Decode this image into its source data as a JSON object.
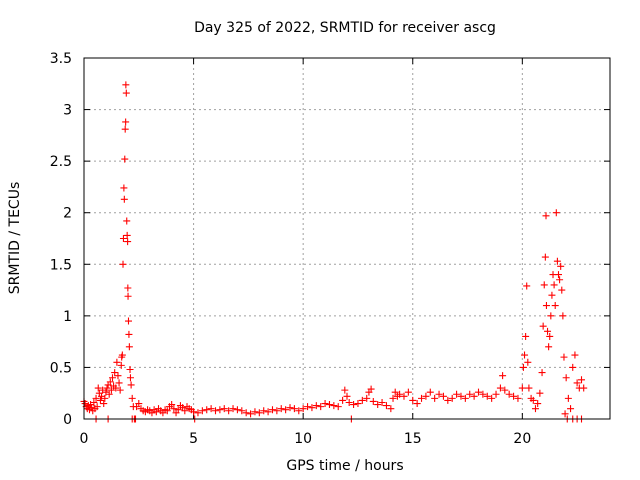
{
  "chart_data": {
    "type": "scatter",
    "title": "Day 325 of 2022, SRMTID for receiver ascg",
    "xlabel": "GPS time / hours",
    "ylabel": "SRMTID / TECUs",
    "xlim": [
      0,
      24
    ],
    "ylim": [
      0,
      3.5
    ],
    "x_ticks": [
      0,
      5,
      10,
      15,
      20
    ],
    "y_ticks": [
      0,
      0.5,
      1,
      1.5,
      2,
      2.5,
      3,
      3.5
    ],
    "x_tick_labels": [
      "0",
      "5",
      "10",
      "15",
      "20"
    ],
    "y_tick_labels": [
      "0",
      "0.5",
      "1",
      "1.5",
      "2",
      "2.5",
      "3",
      "3.5"
    ],
    "grid": true,
    "marker": "plus",
    "marker_color": "#ff0000",
    "series": [
      {
        "name": "SRMTID",
        "points": [
          [
            0.0,
            0.17
          ],
          [
            0.05,
            0.15
          ],
          [
            0.1,
            0.12
          ],
          [
            0.15,
            0.1
          ],
          [
            0.2,
            0.13
          ],
          [
            0.25,
            0.09
          ],
          [
            0.3,
            0.14
          ],
          [
            0.35,
            0.11
          ],
          [
            0.4,
            0.08
          ],
          [
            0.45,
            0.16
          ],
          [
            0.5,
            0.1
          ],
          [
            0.55,
            0.2
          ],
          [
            0.6,
            0.12
          ],
          [
            0.65,
            0.3
          ],
          [
            0.7,
            0.25
          ],
          [
            0.75,
            0.18
          ],
          [
            0.8,
            0.22
          ],
          [
            0.85,
            0.28
          ],
          [
            0.9,
            0.15
          ],
          [
            0.95,
            0.2
          ],
          [
            1.0,
            0.26
          ],
          [
            1.05,
            0.3
          ],
          [
            1.1,
            0.33
          ],
          [
            1.15,
            0.24
          ],
          [
            1.2,
            0.36
          ],
          [
            1.25,
            0.28
          ],
          [
            1.3,
            0.4
          ],
          [
            1.35,
            0.32
          ],
          [
            1.4,
            0.45
          ],
          [
            1.45,
            0.3
          ],
          [
            1.5,
            0.55
          ],
          [
            1.55,
            0.42
          ],
          [
            1.6,
            0.35
          ],
          [
            1.65,
            0.28
          ],
          [
            1.7,
            0.52
          ],
          [
            1.72,
            0.6
          ],
          [
            1.75,
            0.62
          ],
          [
            1.78,
            1.5
          ],
          [
            1.8,
            1.75
          ],
          [
            1.82,
            2.24
          ],
          [
            1.84,
            2.13
          ],
          [
            1.86,
            2.52
          ],
          [
            1.88,
            2.81
          ],
          [
            1.9,
            2.88
          ],
          [
            1.91,
            3.24
          ],
          [
            1.93,
            3.16
          ],
          [
            1.95,
            1.92
          ],
          [
            1.97,
            1.78
          ],
          [
            1.99,
            1.72
          ],
          [
            2.0,
            1.27
          ],
          [
            2.01,
            1.19
          ],
          [
            2.03,
            0.95
          ],
          [
            2.05,
            0.82
          ],
          [
            2.07,
            0.7
          ],
          [
            2.1,
            0.48
          ],
          [
            2.12,
            0.4
          ],
          [
            2.15,
            0.33
          ],
          [
            2.2,
            0.2
          ],
          [
            2.25,
            0.12
          ],
          [
            2.3,
            0.0
          ],
          [
            2.35,
            0.0
          ],
          [
            2.4,
            0.12
          ],
          [
            2.5,
            0.15
          ],
          [
            2.6,
            0.1
          ],
          [
            2.7,
            0.08
          ],
          [
            2.8,
            0.07
          ],
          [
            2.9,
            0.09
          ],
          [
            3.0,
            0.08
          ],
          [
            3.1,
            0.06
          ],
          [
            3.2,
            0.09
          ],
          [
            3.3,
            0.07
          ],
          [
            3.4,
            0.1
          ],
          [
            3.5,
            0.08
          ],
          [
            3.6,
            0.06
          ],
          [
            3.7,
            0.09
          ],
          [
            3.8,
            0.08
          ],
          [
            3.9,
            0.12
          ],
          [
            4.0,
            0.14
          ],
          [
            4.1,
            0.1
          ],
          [
            4.2,
            0.06
          ],
          [
            4.3,
            0.09
          ],
          [
            4.4,
            0.13
          ],
          [
            4.5,
            0.11
          ],
          [
            4.6,
            0.08
          ],
          [
            4.7,
            0.12
          ],
          [
            4.8,
            0.1
          ],
          [
            4.9,
            0.09
          ],
          [
            5.0,
            0.07
          ],
          [
            5.05,
            0.0
          ],
          [
            5.2,
            0.06
          ],
          [
            5.4,
            0.08
          ],
          [
            5.6,
            0.09
          ],
          [
            5.8,
            0.1
          ],
          [
            6.0,
            0.08
          ],
          [
            6.2,
            0.09
          ],
          [
            6.4,
            0.1
          ],
          [
            6.6,
            0.08
          ],
          [
            6.8,
            0.1
          ],
          [
            7.0,
            0.09
          ],
          [
            7.2,
            0.08
          ],
          [
            7.4,
            0.06
          ],
          [
            7.6,
            0.05
          ],
          [
            7.8,
            0.07
          ],
          [
            8.0,
            0.06
          ],
          [
            8.2,
            0.08
          ],
          [
            8.4,
            0.07
          ],
          [
            8.6,
            0.09
          ],
          [
            8.8,
            0.08
          ],
          [
            9.0,
            0.1
          ],
          [
            9.2,
            0.09
          ],
          [
            9.4,
            0.11
          ],
          [
            9.6,
            0.1
          ],
          [
            9.8,
            0.08
          ],
          [
            10.0,
            0.1
          ],
          [
            10.2,
            0.12
          ],
          [
            10.4,
            0.11
          ],
          [
            10.6,
            0.13
          ],
          [
            10.8,
            0.12
          ],
          [
            11.0,
            0.15
          ],
          [
            11.2,
            0.14
          ],
          [
            11.4,
            0.13
          ],
          [
            11.6,
            0.12
          ],
          [
            11.8,
            0.18
          ],
          [
            11.9,
            0.28
          ],
          [
            12.0,
            0.22
          ],
          [
            12.1,
            0.16
          ],
          [
            12.2,
            0.0
          ],
          [
            12.3,
            0.14
          ],
          [
            12.5,
            0.15
          ],
          [
            12.7,
            0.18
          ],
          [
            12.9,
            0.2
          ],
          [
            13.0,
            0.26
          ],
          [
            13.1,
            0.29
          ],
          [
            13.2,
            0.17
          ],
          [
            13.4,
            0.14
          ],
          [
            13.6,
            0.16
          ],
          [
            13.8,
            0.13
          ],
          [
            14.0,
            0.1
          ],
          [
            14.1,
            0.2
          ],
          [
            14.2,
            0.26
          ],
          [
            14.3,
            0.22
          ],
          [
            14.4,
            0.24
          ],
          [
            14.6,
            0.22
          ],
          [
            14.8,
            0.26
          ],
          [
            15.0,
            0.18
          ],
          [
            15.2,
            0.15
          ],
          [
            15.4,
            0.2
          ],
          [
            15.6,
            0.22
          ],
          [
            15.8,
            0.26
          ],
          [
            16.0,
            0.2
          ],
          [
            16.2,
            0.24
          ],
          [
            16.4,
            0.22
          ],
          [
            16.6,
            0.18
          ],
          [
            16.8,
            0.2
          ],
          [
            17.0,
            0.24
          ],
          [
            17.2,
            0.22
          ],
          [
            17.4,
            0.2
          ],
          [
            17.6,
            0.24
          ],
          [
            17.8,
            0.22
          ],
          [
            18.0,
            0.26
          ],
          [
            18.2,
            0.24
          ],
          [
            18.4,
            0.22
          ],
          [
            18.6,
            0.2
          ],
          [
            18.8,
            0.24
          ],
          [
            19.0,
            0.3
          ],
          [
            19.1,
            0.42
          ],
          [
            19.2,
            0.28
          ],
          [
            19.4,
            0.24
          ],
          [
            19.6,
            0.22
          ],
          [
            19.8,
            0.2
          ],
          [
            20.0,
            0.3
          ],
          [
            20.05,
            0.5
          ],
          [
            20.1,
            0.62
          ],
          [
            20.15,
            0.8
          ],
          [
            20.2,
            1.29
          ],
          [
            20.25,
            0.55
          ],
          [
            20.3,
            0.3
          ],
          [
            20.4,
            0.2
          ],
          [
            20.5,
            0.18
          ],
          [
            20.6,
            0.1
          ],
          [
            20.7,
            0.15
          ],
          [
            20.8,
            0.25
          ],
          [
            20.9,
            0.45
          ],
          [
            20.95,
            0.9
          ],
          [
            21.0,
            1.3
          ],
          [
            21.05,
            1.57
          ],
          [
            21.08,
            1.97
          ],
          [
            21.1,
            1.1
          ],
          [
            21.15,
            0.85
          ],
          [
            21.2,
            0.7
          ],
          [
            21.25,
            0.8
          ],
          [
            21.3,
            1.0
          ],
          [
            21.35,
            1.2
          ],
          [
            21.4,
            1.4
          ],
          [
            21.45,
            1.3
          ],
          [
            21.5,
            1.1
          ],
          [
            21.55,
            2.0
          ],
          [
            21.6,
            1.53
          ],
          [
            21.65,
            1.4
          ],
          [
            21.7,
            1.35
          ],
          [
            21.75,
            1.48
          ],
          [
            21.8,
            1.25
          ],
          [
            21.85,
            1.0
          ],
          [
            21.9,
            0.6
          ],
          [
            22.0,
            0.4
          ],
          [
            22.1,
            0.2
          ],
          [
            22.2,
            0.1
          ],
          [
            22.3,
            0.5
          ],
          [
            22.4,
            0.62
          ],
          [
            22.5,
            0.35
          ],
          [
            22.6,
            0.3
          ],
          [
            22.7,
            0.38
          ],
          [
            22.8,
            0.3
          ],
          [
            21.95,
            0.05
          ],
          [
            22.05,
            0.0
          ],
          [
            22.3,
            0.0
          ],
          [
            22.5,
            0.0
          ],
          [
            22.7,
            0.0
          ],
          [
            0.55,
            0.0
          ],
          [
            1.1,
            0.0
          ],
          [
            2.2,
            0.0
          ]
        ]
      }
    ]
  }
}
